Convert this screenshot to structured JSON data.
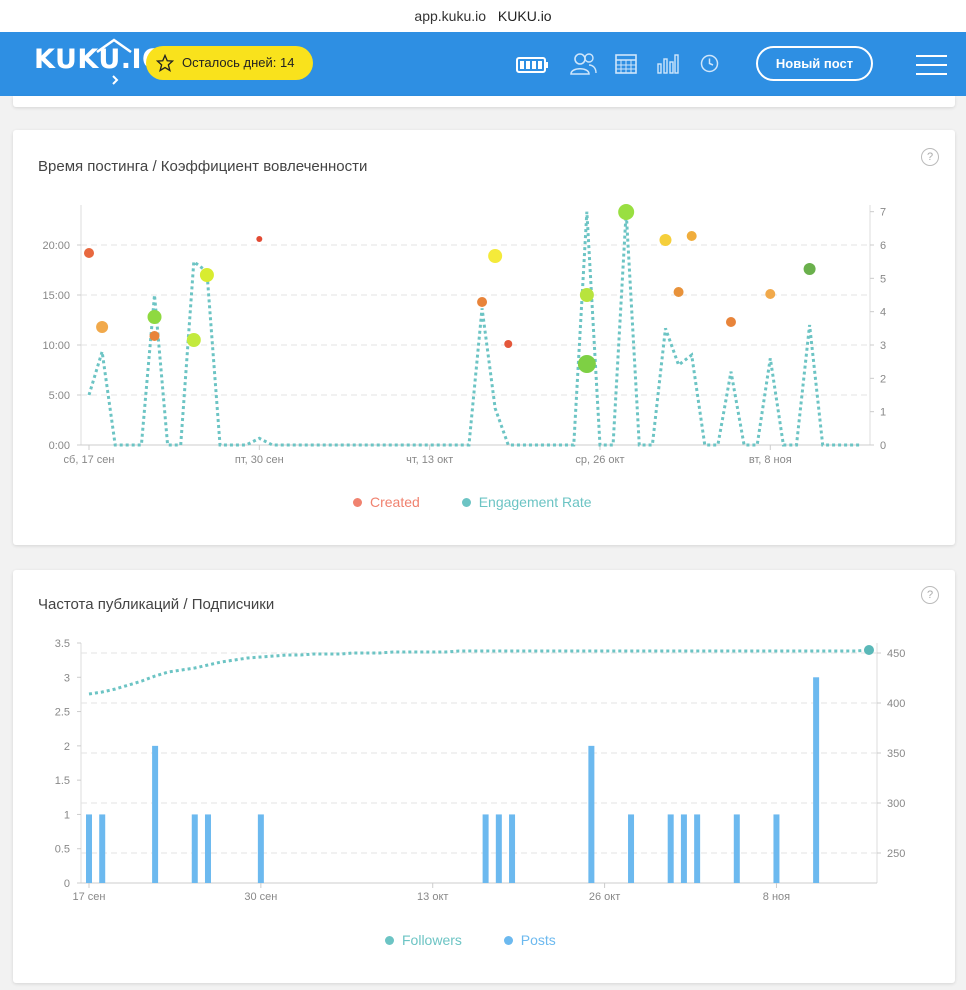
{
  "browser": {
    "url": "app.kuku.io",
    "title": "KUKU.io"
  },
  "header": {
    "logo": "KUKU.IO",
    "trial_badge": "Осталось дней: 14",
    "new_post_button": "Новый пост",
    "nav_icons": [
      "battery-icon",
      "users-icon",
      "calendar-icon",
      "bar-chart-icon",
      "clock-icon"
    ],
    "menu_icon": "hamburger-menu-icon"
  },
  "colors": {
    "header": "#2e8fe3",
    "badge": "#f9e21c",
    "teal": "#6cc4c4",
    "posts_bar": "#6cb9ef",
    "created_dot": "#f0826f"
  },
  "cards": {
    "posting_time": {
      "title": "Время постинга / Коэффициент вовлеченности",
      "legend": {
        "created": "Created",
        "engagement": "Engagement Rate"
      },
      "help": "?"
    },
    "frequency": {
      "title": "Частота публикаций / Подписчики",
      "legend": {
        "followers": "Followers",
        "posts": "Posts"
      },
      "help": "?"
    }
  },
  "chart_data": [
    {
      "type": "scatter",
      "title": "Время постинга / Коэффициент вовлеченности",
      "x_ticks": [
        "сб, 17 сен",
        "пт, 30 сен",
        "чт, 13 окт",
        "ср, 26 окт",
        "вт, 8 ноя"
      ],
      "y_left_ticks": [
        "0:00",
        "5:00",
        "10:00",
        "15:00",
        "20:00"
      ],
      "y_left_range": [
        0,
        24
      ],
      "y_right_ticks": [
        "0",
        "1",
        "2",
        "3",
        "4",
        "5",
        "6",
        "7"
      ],
      "y_right_range": [
        0,
        7.2
      ],
      "days": 60,
      "created_series": [
        {
          "day": 0,
          "hour": 19.2,
          "color": "#e8683f",
          "r": 5
        },
        {
          "day": 1,
          "hour": 11.8,
          "color": "#f1a94b",
          "r": 6
        },
        {
          "day": 5,
          "hour": 10.9,
          "color": "#e8843a",
          "r": 5
        },
        {
          "day": 5,
          "hour": 12.8,
          "color": "#8fd940",
          "r": 7
        },
        {
          "day": 8,
          "hour": 10.5,
          "color": "#c3ea3d",
          "r": 7
        },
        {
          "day": 9,
          "hour": 17.0,
          "color": "#d8ec30",
          "r": 7
        },
        {
          "day": 13,
          "hour": 20.6,
          "color": "#e24a33",
          "r": 3
        },
        {
          "day": 30,
          "hour": 14.3,
          "color": "#e8843a",
          "r": 5
        },
        {
          "day": 31,
          "hour": 18.9,
          "color": "#f4ea3a",
          "r": 7
        },
        {
          "day": 32,
          "hour": 10.1,
          "color": "#e4573a",
          "r": 4
        },
        {
          "day": 38,
          "hour": 15.0,
          "color": "#b8e43d",
          "r": 7
        },
        {
          "day": 38,
          "hour": 8.1,
          "color": "#7ed044",
          "r": 9
        },
        {
          "day": 41,
          "hour": 23.3,
          "color": "#99df41",
          "r": 8
        },
        {
          "day": 44,
          "hour": 20.5,
          "color": "#f5cf3b",
          "r": 6
        },
        {
          "day": 45,
          "hour": 15.3,
          "color": "#e8923a",
          "r": 5
        },
        {
          "day": 46,
          "hour": 20.9,
          "color": "#f0ad3c",
          "r": 5
        },
        {
          "day": 49,
          "hour": 12.3,
          "color": "#e8843a",
          "r": 5
        },
        {
          "day": 52,
          "hour": 15.1,
          "color": "#f1a94b",
          "r": 5
        },
        {
          "day": 55,
          "hour": 17.6,
          "color": "#6ab04c",
          "r": 6
        }
      ],
      "engagement_rate": [
        1.5,
        2.8,
        0,
        0,
        0,
        4.5,
        0,
        0,
        5.5,
        5.2,
        0,
        0,
        0,
        0.2,
        0,
        0,
        0,
        0,
        0,
        0,
        0,
        0,
        0,
        0,
        0,
        0,
        0,
        0,
        0,
        0,
        4.1,
        1.1,
        0,
        0,
        0,
        0,
        0,
        0,
        7.0,
        0,
        0,
        7.0,
        0,
        0,
        3.5,
        2.4,
        2.7,
        0,
        0,
        2.2,
        0,
        0,
        2.6,
        0,
        0,
        3.6,
        0,
        0,
        0,
        0
      ],
      "series_names": [
        "Created",
        "Engagement Rate"
      ]
    },
    {
      "type": "bar",
      "title": "Частота публикаций / Подписчики",
      "x_ticks": [
        "17 сен",
        "30 сен",
        "13 окт",
        "26 окт",
        "8 ноя"
      ],
      "y_left_ticks": [
        "0",
        "0.5",
        "1",
        "1.5",
        "2",
        "2.5",
        "3",
        "3.5"
      ],
      "y_left_range": [
        0,
        3.5
      ],
      "y_right_ticks": [
        "250",
        "300",
        "350",
        "400",
        "450"
      ],
      "y_right_range": [
        220,
        460
      ],
      "days": 60,
      "posts": [
        1,
        1,
        0,
        0,
        0,
        2,
        0,
        0,
        1,
        1,
        0,
        0,
        0,
        1,
        0,
        0,
        0,
        0,
        0,
        0,
        0,
        0,
        0,
        0,
        0,
        0,
        0,
        0,
        0,
        0,
        1,
        1,
        1,
        0,
        0,
        0,
        0,
        0,
        2,
        0,
        0,
        1,
        0,
        0,
        1,
        1,
        1,
        0,
        0,
        1,
        0,
        0,
        1,
        0,
        0,
        3,
        0,
        0,
        0,
        0
      ],
      "followers": [
        409,
        411,
        414,
        418,
        422,
        427,
        431,
        433,
        435,
        438,
        441,
        443,
        445,
        446,
        447,
        448,
        448,
        449,
        449,
        449,
        450,
        450,
        450,
        451,
        451,
        451,
        451,
        451,
        452,
        452,
        452,
        452,
        452,
        452,
        452,
        452,
        452,
        452,
        452,
        452,
        452,
        452,
        452,
        452,
        452,
        452,
        452,
        452,
        452,
        452,
        452,
        452,
        452,
        452,
        452,
        452,
        452,
        452,
        452,
        453
      ],
      "series_names": [
        "Followers",
        "Posts"
      ]
    }
  ]
}
